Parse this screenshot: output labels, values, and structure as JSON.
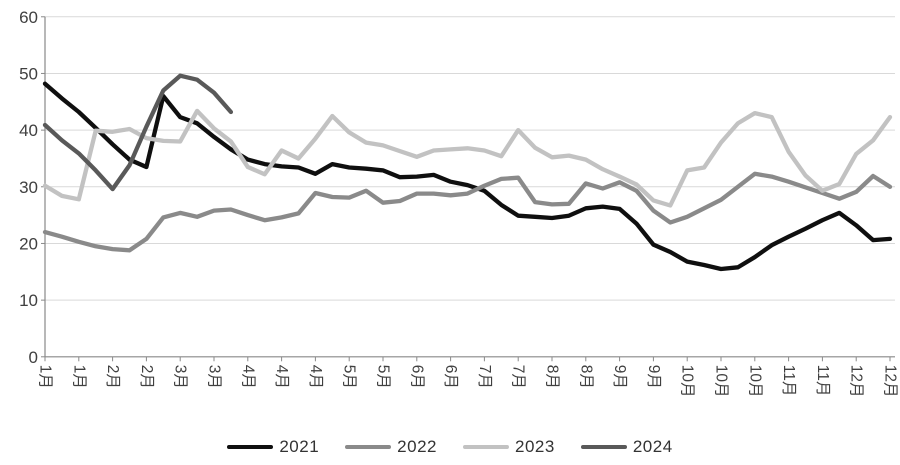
{
  "chart_data": {
    "type": "line",
    "title": "",
    "xlabel": "",
    "ylabel": "",
    "ylim": [
      0,
      60
    ],
    "y_ticks": [
      0,
      10,
      20,
      30,
      40,
      50,
      60
    ],
    "grid": "horizontal",
    "legend_position": "bottom",
    "x_labels": [
      "1月",
      "1月",
      "2月",
      "2月",
      "3月",
      "3月",
      "4月",
      "4月",
      "4月",
      "5月",
      "5月",
      "6月",
      "6月",
      "7月",
      "7月",
      "8月",
      "8月",
      "9月",
      "9月",
      "10月",
      "10月",
      "10月",
      "11月",
      "11月",
      "12月",
      "12月"
    ],
    "points_per_year": 51,
    "series": [
      {
        "name": "2021",
        "color": "#0f0f0f",
        "values": [
          48.2,
          45.6,
          43.2,
          40.4,
          37.5,
          34.8,
          33.5,
          46.0,
          42.3,
          41.2,
          38.8,
          36.6,
          34.8,
          34.0,
          33.6,
          33.4,
          32.3,
          34.0,
          33.4,
          33.2,
          32.9,
          31.7,
          31.8,
          32.1,
          30.9,
          30.3,
          29.3,
          26.8,
          24.9,
          24.7,
          24.5,
          24.9,
          26.2,
          26.5,
          26.1,
          23.5,
          19.8,
          18.5,
          16.8,
          16.2,
          15.5,
          15.8,
          17.6,
          19.7,
          21.2,
          22.6,
          24.1,
          25.4,
          23.2,
          20.6,
          20.8
        ]
      },
      {
        "name": "2022",
        "color": "#8a8a8a",
        "values": [
          22.0,
          21.2,
          20.3,
          19.5,
          19.0,
          18.8,
          20.8,
          24.6,
          25.4,
          24.7,
          25.8,
          26.0,
          25.0,
          24.1,
          24.6,
          25.3,
          28.9,
          28.2,
          28.1,
          29.3,
          27.2,
          27.5,
          28.8,
          28.8,
          28.5,
          28.8,
          30.2,
          31.4,
          31.6,
          27.3,
          26.9,
          27.0,
          30.6,
          29.7,
          30.8,
          29.3,
          25.8,
          23.7,
          24.7,
          26.2,
          27.7,
          30.0,
          32.3,
          31.8,
          30.9,
          29.9,
          28.9,
          27.9,
          29.1,
          31.9,
          30.0
        ]
      },
      {
        "name": "2023",
        "color": "#c2c2c2",
        "values": [
          30.2,
          28.4,
          27.8,
          39.9,
          39.7,
          40.2,
          38.6,
          38.1,
          38.0,
          43.4,
          40.3,
          38.0,
          33.5,
          32.2,
          36.4,
          35.0,
          38.5,
          42.5,
          39.6,
          37.8,
          37.3,
          36.3,
          35.3,
          36.4,
          36.6,
          36.8,
          36.4,
          35.4,
          40.0,
          36.9,
          35.2,
          35.5,
          34.8,
          33.1,
          31.8,
          30.4,
          27.6,
          26.7,
          32.9,
          33.4,
          37.8,
          41.2,
          43.0,
          42.3,
          36.2,
          32.0,
          29.3,
          30.5,
          35.8,
          38.2,
          42.3
        ]
      },
      {
        "name": "2024",
        "color": "#595959",
        "values": [
          40.9,
          38.2,
          35.9,
          32.9,
          29.6,
          33.8,
          40.6,
          47.0,
          49.6,
          48.9,
          46.6,
          43.2
        ]
      }
    ]
  },
  "style": {
    "gridline_color": "#d9d9d9",
    "axis_color": "#898989",
    "tick_color": "#898989",
    "axis_label_color": "#404040",
    "background": "#ffffff"
  }
}
